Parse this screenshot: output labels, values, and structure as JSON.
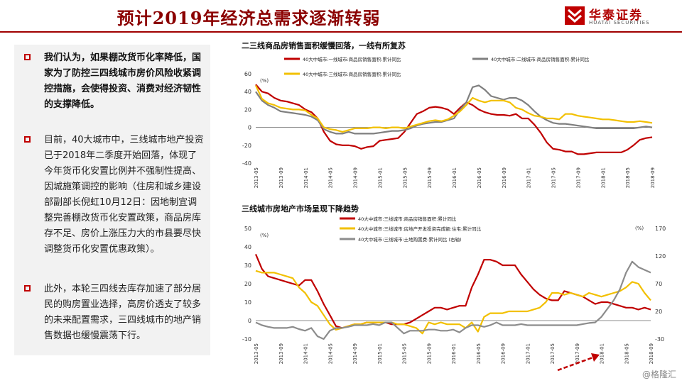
{
  "page": {
    "title": "预计2019年经济总需求逐渐转弱",
    "logo": {
      "cn": "华泰证券",
      "en": "HUATAI SECURITIES"
    },
    "watermark": "@格隆汇"
  },
  "left_panel": {
    "bullets": [
      "我们认为，如果棚改货币化率降低，国家为了防控三四线城市房价风险收紧调控措施，会使得投资、消费对经济韧性的支撑降低。",
      "目前，40大城市中，三线城市地产投资已于2018年二季度开始回落，体现了今年货币化安置比例并不强制性提高、因城施策调控的影响（住房和城乡建设部副部长倪虹10月12日：因地制宜调整完善棚改货币化安置政策，商品房库存不足、房价上涨压力大的市县要尽快调整货币化安置优惠政策）。",
      "此外，本轮三四线去库存加速了部分居民的购房置业选择，高房价透支了较多的未来配置需求，三四线城市的地产销售数据也缓慢震荡下行。"
    ]
  },
  "chart_data": [
    {
      "type": "line",
      "title": "二三线商品房销售面积缓慢回落，一线有所复苏",
      "ylabel": "(%)",
      "ylim": [
        -40,
        60
      ],
      "yticks": [
        -40,
        -20,
        0,
        20,
        40,
        60
      ],
      "x_tick_labels": [
        "2013-05",
        "2013-09",
        "2014-01",
        "2014-05",
        "2014-09",
        "2015-01",
        "2015-05",
        "2015-09",
        "2016-01",
        "2016-05",
        "2016-09",
        "2017-01",
        "2017-05",
        "2017-09",
        "2018-01",
        "2018-05",
        "2018-09"
      ],
      "series": [
        {
          "name": "40大中城市:一线城市:商品房销售面积:累计同比",
          "color": "#c00000",
          "values": [
            48,
            40,
            38,
            33,
            30,
            29,
            27,
            25,
            20,
            17,
            10,
            -5,
            -15,
            -19,
            -20,
            -20,
            -21,
            -24,
            -22,
            -21,
            -15,
            -14,
            -13,
            -12,
            -5,
            5,
            15,
            18,
            22,
            23,
            22,
            20,
            15,
            22,
            28,
            25,
            20,
            17,
            15,
            14,
            14,
            13,
            15,
            10,
            10,
            3,
            -6,
            -17,
            -24,
            -25,
            -27,
            -27,
            -30,
            -30,
            -29,
            -28,
            -28,
            -28,
            -28,
            -28,
            -25,
            -20,
            -14,
            -12,
            -11
          ]
        },
        {
          "name": "40大中城市:二线城市:商品房销售面积:累计同比",
          "color": "#7f7f7f",
          "values": [
            40,
            30,
            25,
            22,
            18,
            17,
            16,
            15,
            14,
            12,
            8,
            -2,
            -5,
            -7,
            -7,
            -5,
            -7,
            -7,
            -7,
            -7,
            -6,
            -5,
            -4,
            -4,
            -3,
            -1,
            2,
            4,
            5,
            6,
            6,
            8,
            10,
            20,
            28,
            45,
            47,
            42,
            35,
            33,
            31,
            33,
            33,
            30,
            25,
            18,
            12,
            8,
            5,
            4,
            4,
            3,
            2,
            1,
            0,
            -1,
            -1,
            -1,
            -1,
            -1,
            -1,
            -1,
            0,
            1,
            0
          ]
        },
        {
          "name": "40大中城市:三线城市:商品房销售面积:累计同比",
          "color": "#f2c000",
          "values": [
            47,
            32,
            27,
            25,
            22,
            21,
            20,
            20,
            19,
            14,
            10,
            0,
            -2,
            -3,
            -5,
            -3,
            -1,
            -1,
            -1,
            0,
            0,
            -1,
            0,
            0,
            -1,
            1,
            3,
            5,
            7,
            8,
            7,
            9,
            13,
            18,
            25,
            33,
            30,
            28,
            30,
            30,
            30,
            28,
            22,
            20,
            16,
            13,
            12,
            10,
            10,
            9,
            15,
            15,
            13,
            12,
            11,
            10,
            9,
            9,
            8,
            7,
            6,
            6,
            7,
            6,
            5
          ]
        }
      ]
    },
    {
      "type": "line",
      "title": "三线城市房地产市场呈现下降趋势",
      "ylabel": "(%)",
      "ylabel_right": "(%)",
      "ylim": [
        -10,
        50
      ],
      "yticks": [
        -10,
        0,
        10,
        20,
        30,
        40,
        50
      ],
      "ylim_right": [
        -30,
        170
      ],
      "yticks_right": [
        -30,
        20,
        70,
        120,
        170
      ],
      "x_tick_labels": [
        "2013-05",
        "2013-09",
        "2014-01",
        "2014-05",
        "2014-09",
        "2015-01",
        "2015-05",
        "2015-09",
        "2016-01",
        "2016-05",
        "2016-09",
        "2017-01",
        "2017-05",
        "2017-09",
        "2018-01",
        "2018-05",
        "2018-09"
      ],
      "series": [
        {
          "name": "40大中城市:三线城市:商品房销售面积:累计同比",
          "color": "#c00000",
          "axis": "left",
          "values": [
            36,
            28,
            24,
            23,
            22,
            21,
            20,
            19,
            22,
            22,
            16,
            9,
            3,
            -3,
            -4,
            -3,
            -2,
            -2,
            -1,
            -1,
            -1,
            -1,
            -2,
            -2,
            -2,
            -1,
            1,
            3,
            5,
            7,
            7,
            6,
            7,
            8,
            8,
            18,
            25,
            33,
            33,
            32,
            30,
            30,
            30,
            25,
            21,
            17,
            14,
            12,
            11,
            11,
            16,
            15,
            14,
            13,
            11,
            9,
            10,
            10,
            9,
            8,
            7,
            7,
            6,
            7,
            6
          ]
        },
        {
          "name": "40大中城市:三线城市:房地产开发投资完成额:住宅:累计同比",
          "color": "#f2c000",
          "axis": "left",
          "values": [
            27,
            26,
            26,
            26,
            25,
            24,
            23,
            18,
            15,
            10,
            8,
            3,
            -2,
            -5,
            -4,
            -3,
            -2,
            -2,
            -1,
            -1,
            -1,
            -1,
            -1,
            -2,
            -2,
            -3,
            -4,
            -7,
            -1,
            -2,
            -1,
            -2,
            -2,
            -2,
            -4,
            -1,
            -6,
            2,
            4,
            4,
            4,
            5,
            5,
            5,
            5,
            6,
            7,
            10,
            15,
            15,
            14,
            15,
            14,
            13,
            15,
            14,
            13,
            14,
            15,
            16,
            18,
            21,
            20,
            15,
            11
          ]
        },
        {
          "name": "40大中城市:三线城市:土地购置费:累计同比 (右轴)",
          "color": "#8c8c8c",
          "axis": "right",
          "values": [
            0,
            -5,
            -8,
            -10,
            -10,
            -10,
            -8,
            -12,
            -15,
            -10,
            -25,
            -30,
            -15,
            -10,
            -10,
            -8,
            -5,
            -5,
            -5,
            -3,
            -5,
            0,
            0,
            -10,
            -20,
            -15,
            -15,
            -15,
            -13,
            -13,
            -15,
            -15,
            -13,
            -18,
            -10,
            -5,
            -5,
            -8,
            -5,
            0,
            -5,
            -5,
            -5,
            -3,
            -5,
            -5,
            -5,
            -5,
            -5,
            -5,
            -5,
            -5,
            -5,
            -3,
            -1,
            0,
            10,
            25,
            40,
            60,
            90,
            110,
            100,
            95,
            90
          ]
        }
      ]
    }
  ]
}
